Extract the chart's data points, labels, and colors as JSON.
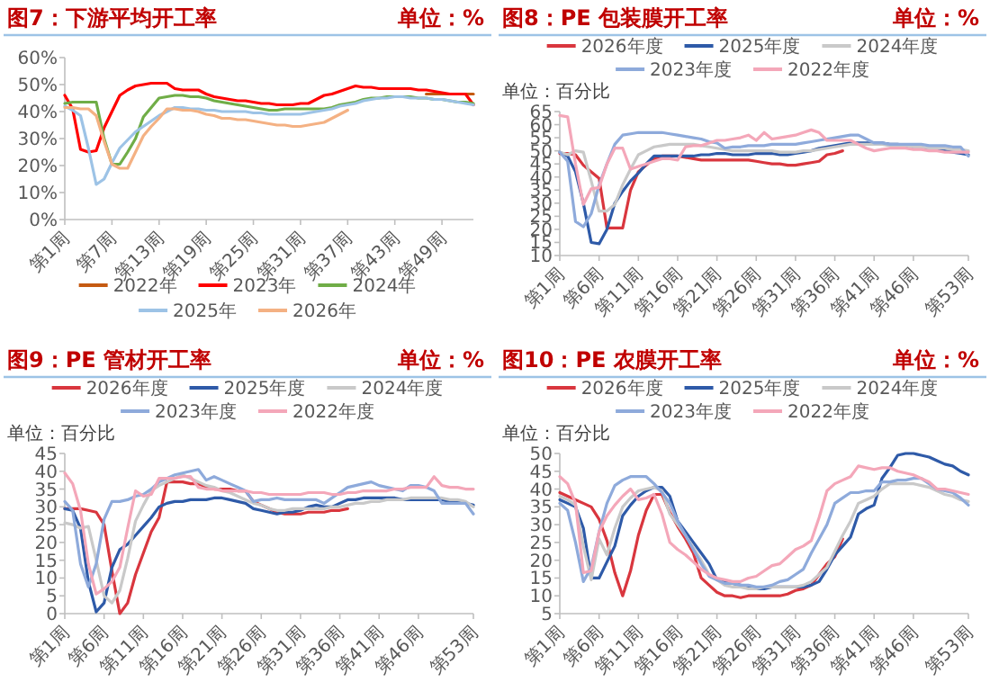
{
  "chart_data": [
    {
      "type": "line",
      "title": "图7：下游平均开工率",
      "subtitle": "单位：%",
      "legend": "bottom",
      "categories": [
        "第1周",
        null,
        null,
        null,
        null,
        null,
        "第7周",
        null,
        null,
        null,
        null,
        null,
        "第13周",
        null,
        null,
        null,
        null,
        null,
        "第19周",
        null,
        null,
        null,
        null,
        null,
        "第25周",
        null,
        null,
        null,
        null,
        null,
        "第31周",
        null,
        null,
        null,
        null,
        null,
        "第37周",
        null,
        null,
        null,
        null,
        null,
        "第43周",
        null,
        null,
        null,
        null,
        null,
        "第49周",
        null,
        null,
        null,
        null
      ],
      "ylim": [
        0,
        60
      ],
      "yticks": [
        {
          "value": 0,
          "label": "0%"
        },
        {
          "value": 10,
          "label": "10%"
        },
        {
          "value": 20,
          "label": "20%"
        },
        {
          "value": 30,
          "label": "30%"
        },
        {
          "value": 40,
          "label": "40%"
        },
        {
          "value": 50,
          "label": "50%"
        },
        {
          "value": 60,
          "label": "60%"
        }
      ],
      "series": [
        {
          "name": "2022年",
          "color": "#c55a11",
          "values": [
            null,
            null,
            null,
            null,
            null,
            null,
            null,
            null,
            null,
            null,
            null,
            null,
            null,
            null,
            null,
            null,
            null,
            null,
            null,
            null,
            null,
            null,
            null,
            null,
            null,
            null,
            null,
            null,
            null,
            null,
            null,
            null,
            null,
            null,
            null,
            null,
            null,
            null,
            null,
            null,
            null,
            null,
            null,
            null,
            null,
            null,
            46.5,
            46.5,
            46.5,
            46.5,
            46.5,
            46.5,
            46.5
          ]
        },
        {
          "name": "2023年",
          "color": "#ff0000",
          "values": [
            46,
            41,
            26,
            25,
            25.5,
            34,
            40,
            46,
            48,
            49.5,
            50,
            50.5,
            50.5,
            50.5,
            48.5,
            48,
            48,
            48,
            46.5,
            45.5,
            45,
            44.5,
            44,
            44,
            43.5,
            43,
            43,
            42.5,
            42.5,
            42.5,
            43,
            43,
            44.5,
            46,
            46.5,
            47.5,
            48.5,
            49.5,
            49,
            49,
            48.5,
            48.5,
            48.5,
            48.5,
            48.5,
            48,
            48,
            47.5,
            47,
            46.5,
            46.5,
            46.5,
            42.5
          ]
        },
        {
          "name": "2024年",
          "color": "#70ad47",
          "values": [
            43,
            43.5,
            43.5,
            43.5,
            43.5,
            30,
            20.5,
            20.5,
            25,
            30,
            38,
            41.5,
            45,
            45.5,
            46,
            46,
            45.5,
            45.5,
            45,
            44,
            43.5,
            43,
            42.5,
            42,
            41.5,
            41,
            40.5,
            40.5,
            41,
            41,
            41,
            41,
            41,
            41,
            41.5,
            42.5,
            43,
            43.5,
            44.5,
            45,
            45,
            45.5,
            45.5,
            45.5,
            45.5,
            45,
            45,
            44.5,
            44.5,
            44,
            43.5,
            43.5,
            43
          ]
        },
        {
          "name": "2025年",
          "color": "#9dc3e6",
          "values": [
            42,
            40.5,
            38.5,
            26.5,
            13,
            15,
            21,
            26.5,
            29.5,
            32.5,
            34.5,
            36.5,
            38.5,
            40,
            41.5,
            41.5,
            41,
            41,
            40.5,
            40.5,
            40,
            40,
            40,
            40,
            39.5,
            39.5,
            39,
            39,
            39,
            39,
            39,
            39.5,
            40,
            40.5,
            41,
            42,
            42.5,
            43,
            44,
            44.5,
            45,
            45,
            45.5,
            45.5,
            45,
            45,
            45,
            44.5,
            44.5,
            44,
            43.5,
            43,
            42.5
          ]
        },
        {
          "name": "2026年",
          "color": "#f4b183",
          "values": [
            41.5,
            41.5,
            41,
            41,
            38.5,
            29,
            20.5,
            19,
            19,
            25,
            31,
            34.5,
            37.5,
            41,
            41,
            40.5,
            40.5,
            40,
            39,
            38.5,
            37.5,
            37.5,
            37,
            37,
            36.5,
            36,
            35.5,
            35,
            35,
            34.5,
            34.5,
            35,
            35.5,
            36,
            37.5,
            39,
            40.5,
            null,
            null,
            null,
            null,
            null,
            null,
            null,
            null,
            null,
            null,
            null,
            null,
            null,
            null,
            null,
            null
          ]
        }
      ]
    },
    {
      "type": "line",
      "title": "图8：PE 包装膜开工率",
      "subtitle": "单位：%",
      "ylabel": "单位：百分比",
      "legend": "top",
      "categories": [
        "第1周",
        null,
        null,
        null,
        null,
        "第6周",
        null,
        null,
        null,
        null,
        "第11周",
        null,
        null,
        null,
        null,
        "第16周",
        null,
        null,
        null,
        null,
        "第21周",
        null,
        null,
        null,
        null,
        "第26周",
        null,
        null,
        null,
        null,
        "第31周",
        null,
        null,
        null,
        null,
        "第36周",
        null,
        null,
        null,
        null,
        "第41周",
        null,
        null,
        null,
        null,
        "第46周",
        null,
        null,
        null,
        null,
        null,
        null,
        "第53周"
      ],
      "ylim": [
        10,
        65
      ],
      "yticks": [
        10,
        15,
        20,
        25,
        30,
        35,
        40,
        45,
        50,
        55,
        60,
        65
      ],
      "series": [
        {
          "name": "2026年度",
          "color": "#d9363e",
          "values": [
            49,
            49,
            48.5,
            44.5,
            42,
            39.5,
            20.5,
            20.5,
            20.5,
            35,
            42,
            44.5,
            47,
            48,
            48,
            48,
            47.5,
            47,
            46.5,
            46.5,
            46.5,
            46.5,
            46.5,
            46.5,
            46.5,
            46,
            45.5,
            45,
            45,
            44.5,
            44.5,
            45,
            45.5,
            46,
            48.5,
            49,
            50,
            null,
            null,
            null,
            null,
            null,
            null,
            null,
            null,
            null,
            null,
            null,
            null,
            null,
            null,
            null,
            null
          ]
        },
        {
          "name": "2025年度",
          "color": "#2e5aa8",
          "values": [
            49.5,
            48,
            42,
            30,
            15,
            14.5,
            20,
            30,
            34.5,
            38.5,
            41.5,
            45,
            48,
            48,
            48,
            48,
            48,
            48,
            48.5,
            48.5,
            49,
            49,
            48.5,
            48.5,
            48.5,
            49,
            49,
            49,
            48.5,
            48.5,
            49,
            49.5,
            50,
            51,
            51.5,
            52,
            52.5,
            53,
            53,
            53,
            53,
            53,
            52.5,
            52.5,
            52,
            51.5,
            51,
            50.5,
            50.5,
            50,
            49.5,
            49,
            48.5
          ]
        },
        {
          "name": "2024年度",
          "color": "#c9c9c9",
          "values": [
            49.5,
            48.5,
            50,
            49.5,
            38.5,
            27,
            27,
            29.5,
            37,
            43,
            48.5,
            50,
            51.5,
            52,
            52.5,
            52.5,
            52.5,
            52.5,
            52,
            51.5,
            51,
            50.5,
            50,
            50,
            50,
            50,
            50,
            50,
            49.5,
            49.5,
            49.5,
            50,
            50,
            50.5,
            51,
            51.5,
            52,
            52.5,
            52.5,
            52.5,
            52.5,
            52.5,
            52,
            52,
            52,
            51.5,
            51.5,
            51,
            51,
            51,
            50.5,
            50.5,
            50
          ]
        },
        {
          "name": "2023年度",
          "color": "#8eaadb",
          "values": [
            49.5,
            46,
            23,
            21,
            26,
            37,
            45,
            52.5,
            56,
            56.5,
            57,
            57,
            57,
            57,
            56.5,
            56,
            55.5,
            55,
            54.5,
            53.5,
            53,
            51,
            51.5,
            51.5,
            52,
            52,
            52,
            52.5,
            52.5,
            52.5,
            52.5,
            53,
            53.5,
            54,
            54.5,
            55,
            55.5,
            56,
            56,
            54.5,
            53,
            53,
            52.5,
            52.5,
            52.5,
            52.5,
            52.5,
            52,
            52,
            52,
            51.5,
            51.5,
            48
          ]
        },
        {
          "name": "2022年度",
          "color": "#f4a7b9",
          "values": [
            63.5,
            63,
            45,
            29.5,
            35.5,
            36,
            45,
            51,
            51,
            43,
            44,
            45,
            46,
            47,
            47,
            46.5,
            51.5,
            52,
            52,
            53,
            54,
            54,
            54.5,
            55,
            56,
            54,
            57,
            54.5,
            55,
            55.5,
            56,
            57,
            58,
            57,
            54,
            54,
            54,
            54,
            52.5,
            51,
            50,
            50.5,
            51,
            51,
            51,
            50.5,
            50.5,
            50,
            50,
            49.5,
            49.5,
            49.5,
            49.5
          ]
        }
      ]
    },
    {
      "type": "line",
      "title": "图9：PE 管材开工率",
      "subtitle": "单位：%",
      "ylabel": "单位：百分比",
      "legend": "top",
      "categories": [
        "第1周",
        null,
        null,
        null,
        null,
        "第6周",
        null,
        null,
        null,
        null,
        "第11周",
        null,
        null,
        null,
        null,
        "第16周",
        null,
        null,
        null,
        null,
        "第21周",
        null,
        null,
        null,
        null,
        "第26周",
        null,
        null,
        null,
        null,
        "第31周",
        null,
        null,
        null,
        null,
        "第36周",
        null,
        null,
        null,
        null,
        "第41周",
        null,
        null,
        null,
        null,
        "第46周",
        null,
        null,
        null,
        null,
        null,
        null,
        "第53周"
      ],
      "ylim": [
        0,
        45
      ],
      "yticks": [
        0,
        5,
        10,
        15,
        20,
        25,
        30,
        35,
        40,
        45
      ],
      "series": [
        {
          "name": "2026年度",
          "color": "#d9363e",
          "values": [
            29.5,
            29.5,
            29.5,
            29,
            28.5,
            25,
            12,
            0,
            3,
            11,
            17,
            23,
            27,
            37,
            37,
            37,
            36.5,
            36.5,
            35.5,
            35,
            35,
            35,
            34.5,
            34.5,
            31.5,
            30.5,
            29.5,
            28.5,
            28,
            28,
            28,
            28.5,
            28.5,
            28.5,
            29,
            29,
            29.5,
            null,
            null,
            null,
            null,
            null,
            null,
            null,
            null,
            null,
            null,
            null,
            null,
            null,
            null,
            null,
            null
          ]
        },
        {
          "name": "2025年度",
          "color": "#2e5aa8",
          "values": [
            29.5,
            29,
            24,
            9,
            0.5,
            3,
            13,
            18,
            19.5,
            22,
            24.5,
            27,
            30,
            31,
            31.5,
            31.5,
            32,
            32,
            32,
            32.5,
            32.5,
            32,
            31.5,
            31,
            29.5,
            29,
            28.5,
            28,
            28.5,
            28.5,
            29,
            30,
            30.5,
            30,
            30,
            31,
            32,
            32,
            32.5,
            32.5,
            32.5,
            32.5,
            32.5,
            32,
            32,
            32,
            32,
            32,
            32,
            31.5,
            31.5,
            31,
            30.5
          ]
        },
        {
          "name": "2024年度",
          "color": "#c9c9c9",
          "values": [
            25.5,
            25,
            24,
            24.5,
            15,
            5,
            3,
            6.5,
            15.5,
            26,
            30.5,
            34.5,
            36,
            37,
            38,
            39,
            38,
            37,
            36,
            35.5,
            34.5,
            34,
            33,
            32,
            31,
            30.5,
            29.5,
            29,
            29,
            29.5,
            29.5,
            29.5,
            29.5,
            29.5,
            30,
            30,
            30.5,
            31,
            31,
            31.5,
            31.5,
            32,
            32,
            32,
            32.5,
            32.5,
            32.5,
            32.5,
            32.5,
            32,
            32,
            31.5,
            30
          ]
        },
        {
          "name": "2023年度",
          "color": "#8eaadb",
          "values": [
            31.5,
            29,
            14,
            7.5,
            14,
            26.5,
            31.5,
            31.5,
            32,
            33,
            33.5,
            35,
            37,
            38,
            39,
            39.5,
            40,
            40.5,
            37.5,
            38.5,
            37.5,
            36.5,
            35.5,
            34.5,
            31.5,
            32,
            32,
            32.5,
            32,
            32,
            32,
            32,
            32,
            31,
            32.5,
            34,
            35.5,
            36,
            36.5,
            37,
            36,
            35.5,
            35,
            34.5,
            36,
            36,
            35.5,
            34.5,
            31,
            31,
            31,
            31,
            28
          ]
        },
        {
          "name": "2022年度",
          "color": "#f4a7b9",
          "values": [
            39.5,
            36.5,
            29,
            14,
            5.5,
            7,
            9,
            13,
            24,
            34.5,
            33,
            33.5,
            38,
            38,
            38,
            38.5,
            38.5,
            35.5,
            35,
            35,
            34.5,
            34.5,
            34.5,
            34.5,
            34,
            34,
            33.5,
            33.5,
            33.5,
            33.5,
            33.5,
            34,
            34,
            34,
            33.5,
            33.5,
            34,
            34,
            34.5,
            34.5,
            34.5,
            34.5,
            35,
            35,
            35.5,
            35.5,
            35.5,
            38.5,
            36,
            35.5,
            35.5,
            35,
            35
          ]
        }
      ]
    },
    {
      "type": "line",
      "title": "图10：PE 农膜开工率",
      "subtitle": "单位：%",
      "ylabel": "单位：百分比",
      "legend": "top",
      "categories": [
        "第1周",
        null,
        null,
        null,
        null,
        "第6周",
        null,
        null,
        null,
        null,
        "第11周",
        null,
        null,
        null,
        null,
        "第16周",
        null,
        null,
        null,
        null,
        "第21周",
        null,
        null,
        null,
        null,
        "第26周",
        null,
        null,
        null,
        null,
        "第31周",
        null,
        null,
        null,
        null,
        "第36周",
        null,
        null,
        null,
        null,
        "第41周",
        null,
        null,
        null,
        null,
        "第46周",
        null,
        null,
        null,
        null,
        null,
        null,
        "第53周"
      ],
      "ylim": [
        5,
        50
      ],
      "yticks": [
        5,
        10,
        15,
        20,
        25,
        30,
        35,
        40,
        45,
        50
      ],
      "series": [
        {
          "name": "2026年度",
          "color": "#d9363e",
          "values": [
            39,
            38,
            37,
            36,
            35,
            31.5,
            25.5,
            16.5,
            10,
            17,
            27,
            34,
            38.5,
            38.5,
            33.5,
            29.5,
            26,
            22,
            15,
            13,
            11,
            10,
            10,
            9.5,
            10,
            10,
            10,
            10,
            10,
            10.5,
            11.5,
            12,
            13,
            16,
            19,
            21,
            26,
            null,
            null,
            null,
            null,
            null,
            null,
            null,
            null,
            null,
            null,
            null,
            null,
            null,
            null,
            null,
            null
          ]
        },
        {
          "name": "2025年度",
          "color": "#2e5aa8",
          "values": [
            37,
            36,
            35,
            29,
            15,
            15,
            19.5,
            24,
            32.5,
            35.5,
            38,
            39.5,
            40.5,
            40.5,
            38,
            31,
            28,
            25,
            22,
            19,
            14.5,
            14,
            13.5,
            13,
            12.5,
            12,
            12,
            12.5,
            12.5,
            12.5,
            12.5,
            12.5,
            13,
            14,
            17.5,
            21.5,
            24,
            26.5,
            33,
            34.5,
            35.5,
            43,
            46,
            49.5,
            50,
            50,
            49.5,
            49,
            48,
            47,
            46.5,
            45,
            44
          ]
        },
        {
          "name": "2024年度",
          "color": "#c9c9c9",
          "values": [
            38,
            37,
            35.5,
            24,
            14.5,
            26,
            21.5,
            29,
            35,
            37.5,
            39.5,
            40,
            40.5,
            39.5,
            33,
            30,
            27,
            23.5,
            20,
            16,
            14.5,
            13,
            12.5,
            12.5,
            12,
            12,
            12.5,
            12.5,
            12.5,
            12.5,
            12.5,
            13,
            14,
            16,
            18,
            22.5,
            27,
            31,
            36,
            37,
            38,
            40,
            41.5,
            41.5,
            41.5,
            41.5,
            41,
            40.5,
            39.5,
            38.5,
            38,
            37,
            36.5
          ]
        },
        {
          "name": "2023年度",
          "color": "#8eaadb",
          "values": [
            36,
            34,
            25,
            14,
            18,
            28,
            36,
            41,
            42.5,
            43.5,
            43.5,
            43.5,
            41.5,
            39,
            36,
            31,
            27,
            23,
            19,
            15.5,
            14.5,
            13.5,
            13.5,
            13,
            13,
            12.5,
            12.5,
            13,
            14,
            14.5,
            16,
            17.5,
            22,
            26,
            30,
            36,
            37.5,
            39,
            39,
            39.5,
            39.5,
            42,
            42,
            42.5,
            42.5,
            43,
            43,
            41.5,
            40,
            39.5,
            39,
            37.5,
            35.5
          ]
        },
        {
          "name": "2022年度",
          "color": "#f4a7b9",
          "values": [
            43.5,
            41.5,
            36,
            16.5,
            17,
            28,
            32.5,
            35.5,
            38,
            40,
            37,
            37.5,
            38.5,
            33,
            25,
            23,
            21.5,
            19.5,
            17.5,
            16,
            15,
            14.5,
            14,
            14,
            15,
            15.5,
            17,
            18.5,
            19,
            21,
            23,
            24,
            25.5,
            32,
            39.5,
            41.5,
            42.5,
            43.5,
            46.5,
            46,
            45.5,
            46,
            46,
            45,
            44.5,
            44,
            43,
            42,
            40,
            40,
            39.5,
            39,
            38.5
          ]
        }
      ]
    }
  ]
}
